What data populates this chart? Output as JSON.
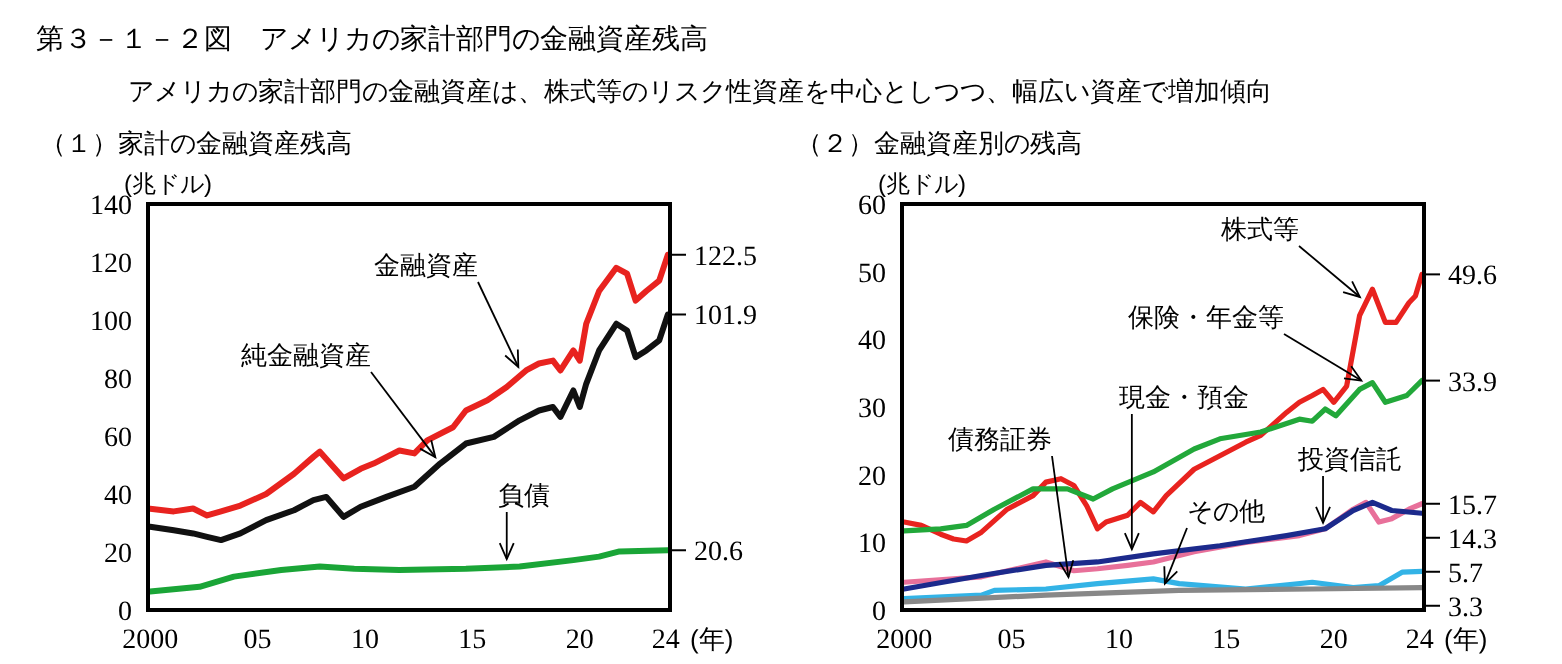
{
  "chart_data": [
    {
      "type": "line",
      "title": "（１）家計の金融資産残高",
      "ylabel": "(兆ドル)",
      "xlabel": "(年)",
      "xlim": [
        1999.9,
        2024.2
      ],
      "xticks": [
        {
          "value": 2000,
          "label": "2000"
        },
        {
          "value": 2005,
          "label": "05"
        },
        {
          "value": 2010,
          "label": "10"
        },
        {
          "value": 2015,
          "label": "15"
        },
        {
          "value": 2020,
          "label": "20"
        },
        {
          "value": 2024,
          "label": "24"
        }
      ],
      "ylim": [
        0,
        140
      ],
      "yticks": [
        0,
        20,
        40,
        60,
        80,
        100,
        120,
        140
      ],
      "grid": false,
      "line_style": "solid",
      "marker": "none",
      "series": [
        {
          "color": "#e8231f",
          "x": [
            2000.0,
            2001.1,
            2002.0,
            2002.65,
            2003.3,
            2004.2,
            2005.4,
            2006.7,
            2007.6,
            2007.9,
            2009.0,
            2009.8,
            2010.4,
            2011.6,
            2012.3,
            2012.9,
            2014.1,
            2014.7,
            2015.7,
            2016.6,
            2017.5,
            2018.1,
            2018.75,
            2019.1,
            2019.7,
            2020.0,
            2020.3,
            2020.9,
            2021.7,
            2022.2,
            2022.6,
            2023.1,
            2023.7,
            2024.1
          ],
          "values": [
            34.9,
            34,
            35,
            32.6,
            34,
            36,
            40,
            47,
            52.8,
            54.6,
            45.4,
            48.7,
            50.5,
            55,
            54,
            58.5,
            63,
            68.8,
            72.3,
            76.9,
            82.6,
            85,
            86,
            82.6,
            89.5,
            86,
            98.7,
            110,
            118,
            116,
            106.7,
            110,
            113.6,
            122.5
          ]
        },
        {
          "color": "#111111",
          "x": [
            2000.0,
            2001.1,
            2002.0,
            2002.65,
            2003.3,
            2004.2,
            2005.4,
            2006.7,
            2007.6,
            2008.2,
            2009.0,
            2009.8,
            2011.0,
            2012.3,
            2013.5,
            2014.7,
            2016.0,
            2017.2,
            2018.1,
            2018.75,
            2019.1,
            2019.7,
            2020.0,
            2020.3,
            2020.9,
            2021.7,
            2022.2,
            2022.6,
            2023.1,
            2023.7,
            2024.1
          ],
          "values": [
            28.7,
            27.5,
            26.4,
            25.2,
            24.1,
            26.4,
            31,
            34.4,
            37.9,
            39,
            32.1,
            35.6,
            39,
            42.5,
            50.5,
            57.4,
            59.7,
            65.4,
            68.8,
            70,
            66.6,
            75.7,
            70,
            78,
            89.5,
            98.7,
            96.4,
            87.2,
            89.5,
            93,
            101.9
          ]
        },
        {
          "color": "#1aa537",
          "x": [
            2000.0,
            2002.3,
            2003.9,
            2006.1,
            2007.9,
            2009.5,
            2011.6,
            2014.7,
            2017.2,
            2019.7,
            2020.9,
            2021.85,
            2024.1
          ],
          "values": [
            6.4,
            8,
            11.5,
            13.8,
            15,
            14.2,
            13.8,
            14.2,
            15,
            17.2,
            18.4,
            20.2,
            20.6
          ]
        }
      ],
      "annotations": [
        "第３－１－２図　アメリカの家計部門の金融資産残高",
        "アメリカの家計部門の金融資産は、株式等のリスク性資産を中心としつつ、幅広い資産で増加傾向",
        {
          "text": "金融資産",
          "x": 2017.3,
          "y": 81.3
        },
        {
          "text": "純金融資産",
          "x": 2013.5,
          "y": 50.5
        },
        {
          "text": "負債",
          "x": 2016.6,
          "y": 14.8
        },
        {
          "text": "122.5",
          "x": 2024.1,
          "y": 122.5
        },
        {
          "text": "101.9",
          "x": 2024.1,
          "y": 101.9
        },
        {
          "text": "20.6",
          "x": 2024.1,
          "y": 20.6
        }
      ]
    },
    {
      "type": "line",
      "title": "（２）金融資産別の残高",
      "ylabel": "(兆ドル)",
      "xlabel": "(年)",
      "xlim": [
        1999.9,
        2024.2
      ],
      "xticks": [
        {
          "value": 2000,
          "label": "2000"
        },
        {
          "value": 2005,
          "label": "05"
        },
        {
          "value": 2010,
          "label": "10"
        },
        {
          "value": 2015,
          "label": "15"
        },
        {
          "value": 2020,
          "label": "20"
        },
        {
          "value": 2024,
          "label": "24"
        }
      ],
      "ylim": [
        0,
        60
      ],
      "yticks": [
        0,
        10,
        20,
        30,
        40,
        50,
        60
      ],
      "grid": false,
      "line_style": "solid",
      "marker": "none",
      "series": [
        {
          "color": "#e8231f",
          "x": [
            2000.0,
            2000.8,
            2001.7,
            2002.3,
            2002.9,
            2003.6,
            2004.8,
            2006.0,
            2006.6,
            2007.3,
            2007.9,
            2008.5,
            2009.0,
            2009.4,
            2010.4,
            2011.0,
            2011.6,
            2012.2,
            2013.5,
            2014.7,
            2015.9,
            2016.6,
            2017.8,
            2018.4,
            2019.0,
            2019.5,
            2020.0,
            2020.6,
            2021.2,
            2021.8,
            2022.4,
            2022.9,
            2023.5,
            2023.8,
            2024.1
          ],
          "values": [
            13,
            12.5,
            11.2,
            10.5,
            10.2,
            11.5,
            14.9,
            16.9,
            18.9,
            19.4,
            18.4,
            15.4,
            12,
            13,
            14,
            15.9,
            14.5,
            16.9,
            20.8,
            22.8,
            24.8,
            25.8,
            29.2,
            30.7,
            31.7,
            32.6,
            30.7,
            33.1,
            43.5,
            47.4,
            42.5,
            42.5,
            45.4,
            46.4,
            49.6
          ]
        },
        {
          "color": "#22a83a",
          "x": [
            2000.0,
            2001.7,
            2002.9,
            2004.2,
            2006.0,
            2007.6,
            2008.8,
            2009.7,
            2011.6,
            2013.5,
            2014.7,
            2016.6,
            2018.4,
            2019.0,
            2019.6,
            2020.1,
            2021.2,
            2021.8,
            2022.4,
            2023.4,
            2024.1
          ],
          "values": [
            11.7,
            12,
            12.5,
            14.9,
            17.9,
            17.9,
            16.4,
            17.9,
            20.4,
            23.8,
            25.3,
            26.3,
            28.2,
            27.9,
            29.7,
            28.7,
            32.6,
            33.6,
            30.7,
            31.7,
            33.9
          ]
        },
        {
          "color": "#e8709a",
          "x": [
            2000.0,
            2003.6,
            2006.6,
            2007.9,
            2009.0,
            2010.4,
            2011.6,
            2013.5,
            2015.9,
            2018.4,
            2019.6,
            2020.9,
            2021.5,
            2022.1,
            2022.7,
            2023.5,
            2024.1
          ],
          "values": [
            4.1,
            4.9,
            7.1,
            5.8,
            6.1,
            6.6,
            7.1,
            8.6,
            10,
            11,
            12,
            14.9,
            15.9,
            13,
            13.5,
            14.9,
            15.7
          ]
        },
        {
          "color": "#1c2a8c",
          "x": [
            2000.0,
            2003.6,
            2006.6,
            2009.0,
            2011.6,
            2014.7,
            2017.8,
            2019.6,
            2020.9,
            2021.8,
            2022.7,
            2024.1
          ],
          "values": [
            3.1,
            5.1,
            6.6,
            7.1,
            8.3,
            9.5,
            11,
            12,
            14.7,
            15.9,
            14.7,
            14.3
          ]
        },
        {
          "color": "#33b3e6",
          "x": [
            2000.0,
            2003.6,
            2004.2,
            2006.6,
            2009.0,
            2011.6,
            2012.8,
            2015.9,
            2019.0,
            2020.9,
            2022.1,
            2023.2,
            2024.1
          ],
          "values": [
            1.7,
            2.2,
            2.9,
            3.1,
            3.9,
            4.6,
            3.9,
            3.1,
            4.1,
            3.3,
            3.6,
            5.6,
            5.7
          ]
        },
        {
          "color": "#888888",
          "x": [
            2000.0,
            2006.6,
            2012.8,
            2019.0,
            2024.1
          ],
          "values": [
            1.2,
            2.2,
            2.9,
            3.1,
            3.3
          ]
        }
      ],
      "annotations": [
        {
          "text": "株式等",
          "x": 2021.5,
          "y": 45.5
        },
        {
          "text": "保険・年金等",
          "x": 2021.6,
          "y": 33.3
        },
        {
          "text": "投資信託",
          "x": 2019.5,
          "y": 11.7
        },
        {
          "text": "現金・預金",
          "x": 2010.6,
          "y": 7.8
        },
        {
          "text": "債務証券",
          "x": 2007.7,
          "y": 3.7
        },
        {
          "text": "その他",
          "x": 2012.0,
          "y": 2.8
        },
        {
          "text": "49.6",
          "x": 2024.1,
          "y": 49.6
        },
        {
          "text": "33.9",
          "x": 2024.1,
          "y": 33.9
        },
        {
          "text": "15.7",
          "x": 2024.1,
          "y": 15.7
        },
        {
          "text": "14.3",
          "x": 2024.1,
          "y": 14.3
        },
        {
          "text": "5.7",
          "x": 2024.1,
          "y": 5.7
        },
        {
          "text": "3.3",
          "x": 2024.1,
          "y": 3.3
        }
      ]
    }
  ]
}
